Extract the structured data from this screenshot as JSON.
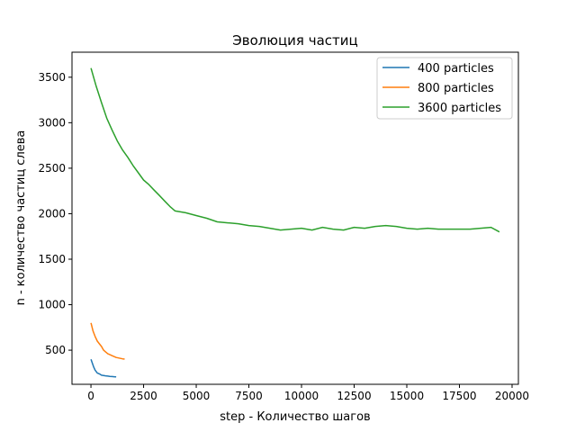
{
  "chart_data": {
    "type": "line",
    "title": "Эволюция частиц",
    "xlabel": "step - Количество шагов",
    "ylabel": "n - количество частиц слева",
    "xlim": [
      -900,
      20300
    ],
    "ylim": [
      125,
      3775
    ],
    "xticks": [
      0,
      2500,
      5000,
      7500,
      10000,
      12500,
      15000,
      17500,
      20000
    ],
    "yticks": [
      500,
      1000,
      1500,
      2000,
      2500,
      3000,
      3500
    ],
    "grid": false,
    "legend_position": "top-right",
    "series": [
      {
        "name": "400 particles",
        "color": "#1f77b4",
        "points": [
          [
            0,
            400
          ],
          [
            60,
            360
          ],
          [
            120,
            320
          ],
          [
            200,
            280
          ],
          [
            300,
            250
          ],
          [
            400,
            240
          ],
          [
            500,
            225
          ],
          [
            600,
            222
          ],
          [
            700,
            218
          ],
          [
            800,
            215
          ],
          [
            900,
            212
          ],
          [
            1000,
            210
          ],
          [
            1100,
            208
          ],
          [
            1200,
            206
          ]
        ]
      },
      {
        "name": "800 particles",
        "color": "#ff7f0e",
        "points": [
          [
            0,
            800
          ],
          [
            100,
            710
          ],
          [
            200,
            650
          ],
          [
            300,
            600
          ],
          [
            400,
            570
          ],
          [
            500,
            540
          ],
          [
            600,
            500
          ],
          [
            700,
            480
          ],
          [
            800,
            460
          ],
          [
            900,
            450
          ],
          [
            1000,
            440
          ],
          [
            1100,
            430
          ],
          [
            1200,
            420
          ],
          [
            1300,
            415
          ],
          [
            1400,
            410
          ],
          [
            1500,
            405
          ],
          [
            1600,
            402
          ]
        ]
      },
      {
        "name": "3600 particles",
        "color": "#2ca02c",
        "points": [
          [
            0,
            3600
          ],
          [
            250,
            3400
          ],
          [
            500,
            3220
          ],
          [
            750,
            3050
          ],
          [
            1000,
            2920
          ],
          [
            1250,
            2800
          ],
          [
            1500,
            2700
          ],
          [
            1750,
            2620
          ],
          [
            2000,
            2530
          ],
          [
            2250,
            2450
          ],
          [
            2500,
            2370
          ],
          [
            2750,
            2320
          ],
          [
            3000,
            2260
          ],
          [
            3250,
            2200
          ],
          [
            3500,
            2140
          ],
          [
            3750,
            2080
          ],
          [
            4000,
            2030
          ],
          [
            4500,
            2010
          ],
          [
            5000,
            1980
          ],
          [
            5500,
            1950
          ],
          [
            6000,
            1910
          ],
          [
            6500,
            1900
          ],
          [
            7000,
            1890
          ],
          [
            7500,
            1870
          ],
          [
            8000,
            1860
          ],
          [
            8500,
            1840
          ],
          [
            9000,
            1820
          ],
          [
            9500,
            1830
          ],
          [
            10000,
            1840
          ],
          [
            10500,
            1820
          ],
          [
            11000,
            1850
          ],
          [
            11500,
            1830
          ],
          [
            12000,
            1820
          ],
          [
            12500,
            1850
          ],
          [
            13000,
            1840
          ],
          [
            13500,
            1860
          ],
          [
            14000,
            1870
          ],
          [
            14500,
            1860
          ],
          [
            15000,
            1840
          ],
          [
            15500,
            1830
          ],
          [
            16000,
            1840
          ],
          [
            16500,
            1830
          ],
          [
            17000,
            1830
          ],
          [
            17500,
            1830
          ],
          [
            18000,
            1830
          ],
          [
            18500,
            1840
          ],
          [
            19000,
            1850
          ],
          [
            19400,
            1800
          ]
        ]
      }
    ]
  }
}
